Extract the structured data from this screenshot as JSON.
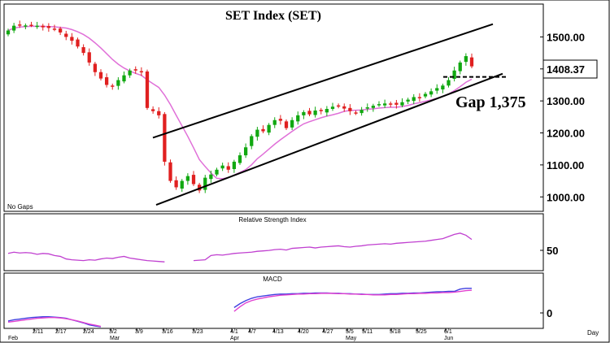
{
  "chart_data": [
    {
      "type": "candlestick",
      "title": "SET Index (SET)",
      "corner_note": "No Gaps",
      "ylim": [
        960,
        1590
      ],
      "yticks": [
        "1500.00",
        "1400.00",
        "1300.00",
        "1200.00",
        "1100.00",
        "1000.00"
      ],
      "last_price_label": "1408.37",
      "annotation": "Gap 1,375",
      "gap_level": 1375,
      "colors": {
        "up": "#11a811",
        "down": "#e02020",
        "ma": "#e070d8",
        "channel": "#000000"
      },
      "close": [
        1520,
        1535,
        1538,
        1536,
        1537,
        1535,
        1530,
        1528,
        1524,
        1514,
        1500,
        1488,
        1470,
        1450,
        1420,
        1390,
        1370,
        1350,
        1345,
        1365,
        1380,
        1395,
        1395,
        1390,
        1278,
        1268,
        1255,
        1110,
        1050,
        1030,
        1050,
        1065,
        1040,
        1020,
        1060,
        1070,
        1085,
        1098,
        1085,
        1110,
        1130,
        1155,
        1190,
        1210,
        1205,
        1225,
        1240,
        1238,
        1215,
        1240,
        1255,
        1265,
        1258,
        1270,
        1268,
        1275,
        1282,
        1285,
        1276,
        1268,
        1262,
        1272,
        1280,
        1285,
        1290,
        1292,
        1290,
        1288,
        1296,
        1304,
        1312,
        1310,
        1322,
        1330,
        1340,
        1348,
        1365,
        1395,
        1420,
        1440,
        1408
      ],
      "channel_upper": [
        [
          1110,
          1185
        ],
        [
          1545,
          1540
        ]
      ],
      "channel_lower": [
        [
          1110,
          975
        ],
        [
          1545,
          1385
        ]
      ],
      "ma_period": 10
    },
    {
      "type": "line",
      "title": "Relative Strength Index",
      "ytick": "50",
      "ylim": [
        0,
        100
      ],
      "series": [
        {
          "values": [
            35,
            38,
            36,
            37,
            36,
            33,
            35,
            34,
            30,
            28,
            22,
            20,
            19,
            18,
            20,
            19,
            22,
            24,
            23,
            26,
            28,
            24,
            22,
            20,
            18,
            17,
            16,
            15,
            null,
            null,
            null,
            null,
            18,
            19,
            20,
            30,
            32,
            31,
            33,
            35,
            36,
            37,
            38,
            40,
            41,
            42,
            44,
            45,
            43,
            47,
            48,
            49,
            50,
            48,
            50,
            51,
            52,
            53,
            51,
            50,
            52,
            53,
            55,
            56,
            57,
            58,
            57,
            59,
            60,
            61,
            62,
            63,
            64,
            66,
            68,
            70,
            75,
            80,
            83,
            78,
            68
          ]
        }
      ]
    },
    {
      "type": "line",
      "title": "MACD",
      "ytick": "0",
      "ylim": [
        -60,
        50
      ],
      "series": [
        {
          "color": "#4040e0",
          "values": [
            -45,
            -42,
            -40,
            -38,
            -36,
            -35,
            -34,
            -34,
            -35,
            -36,
            -38,
            -42,
            -46,
            -50,
            -55,
            -58,
            -60,
            null,
            null,
            null,
            null,
            null,
            null,
            null,
            null,
            null,
            null,
            null,
            null,
            null,
            null,
            null,
            null,
            null,
            null,
            null,
            null,
            null,
            null,
            -10,
            0,
            8,
            14,
            18,
            20,
            22,
            24,
            25,
            25,
            26,
            26,
            27,
            27,
            28,
            28,
            28,
            27,
            27,
            26,
            26,
            25,
            25,
            24,
            24,
            24,
            25,
            26,
            26,
            27,
            27,
            28,
            28,
            29,
            30,
            31,
            31,
            32,
            32,
            38,
            40,
            40
          ]
        },
        {
          "color": "#e040d0",
          "values": [
            -48,
            -46,
            -44,
            -42,
            -40,
            -38,
            -37,
            -36,
            -36,
            -37,
            -39,
            -42,
            -45,
            -49,
            -53,
            -56,
            -59,
            null,
            null,
            null,
            null,
            null,
            null,
            null,
            null,
            null,
            null,
            null,
            null,
            null,
            null,
            null,
            null,
            null,
            null,
            null,
            null,
            null,
            null,
            -20,
            -8,
            2,
            8,
            12,
            15,
            18,
            20,
            22,
            23,
            24,
            25,
            25,
            26,
            26,
            27,
            27,
            27,
            26,
            26,
            25,
            25,
            24,
            24,
            23,
            23,
            23,
            24,
            24,
            25,
            26,
            26,
            27,
            27,
            28,
            28,
            29,
            29,
            30,
            32,
            34,
            35
          ]
        }
      ]
    }
  ],
  "x_axis": {
    "ticks": [
      "2/11",
      "2/17",
      "2/24",
      "3/2",
      "3/9",
      "3/16",
      "3/23",
      "4/1",
      "4/7",
      "4/13",
      "4/20",
      "4/27",
      "5/5",
      "5/11",
      "5/18",
      "5/25",
      "6/1"
    ],
    "months": [
      "Feb",
      "Mar",
      "Apr",
      "May",
      "Jun"
    ],
    "unit_label": "Day"
  }
}
